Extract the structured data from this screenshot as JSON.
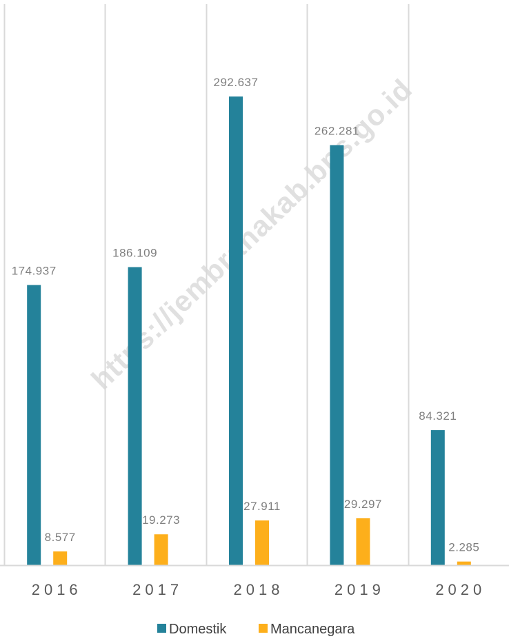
{
  "watermark": "https://jembranakab.bps.go.id",
  "chart_data": {
    "type": "bar",
    "categories": [
      "2016",
      "2017",
      "2018",
      "2019",
      "2020"
    ],
    "series": [
      {
        "name": "Domestik",
        "color": "#24829a",
        "values": [
          174937,
          186109,
          292637,
          262281,
          84321
        ],
        "labels": [
          "174.937",
          "186.109",
          "292.637",
          "262.281",
          "84.321"
        ]
      },
      {
        "name": "Mancanegara",
        "color": "#fdaf1b",
        "values": [
          8577,
          19273,
          27911,
          29297,
          2285
        ],
        "labels": [
          "8.577",
          "19.273",
          "27.911",
          "29.297",
          "2.285"
        ]
      }
    ],
    "ylim": [
      0,
      350000
    ],
    "grid": "vertical category separators",
    "legend": "bottom-center",
    "title": "",
    "xlabel": "",
    "ylabel": ""
  }
}
